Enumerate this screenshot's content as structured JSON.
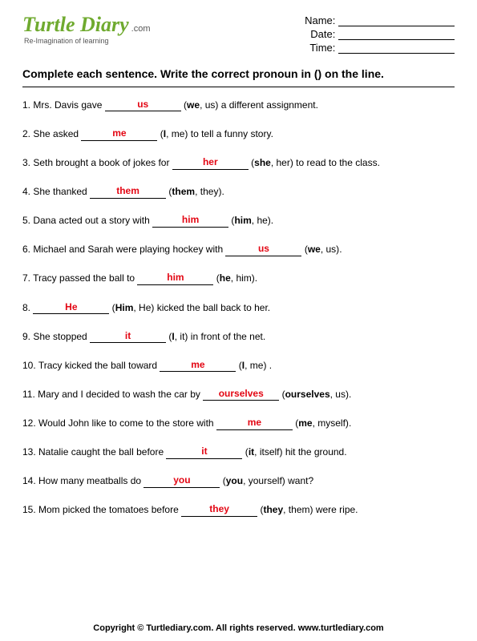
{
  "logo": {
    "main": "Turtle Diary",
    "dotcom": ".com",
    "tagline": "Re-Imagination of learning"
  },
  "form": {
    "name_label": "Name:",
    "date_label": "Date:",
    "time_label": "Time:"
  },
  "instructions": "Complete each sentence. Write the correct pronoun in () on the line.",
  "q": [
    {
      "num": "1.",
      "pre": "Mrs. Davis gave ",
      "ans": "us",
      "opt1": "we",
      "opt2": "us",
      "post": " a different assignment."
    },
    {
      "num": "2.",
      "pre": " She asked ",
      "ans": "me",
      "opt1": "I",
      "opt2": "me",
      "post": " to tell a funny story."
    },
    {
      "num": "3.",
      "pre": "Seth brought a book of jokes for ",
      "ans": "her",
      "opt1": "she",
      "opt2": "her",
      "post": " to read to the class."
    },
    {
      "num": "4.",
      "pre": "She thanked ",
      "ans": "them",
      "opt1": "them",
      "opt2": "they",
      "post": "."
    },
    {
      "num": "5.",
      "pre": "Dana acted out a story with ",
      "ans": "him",
      "opt1": "him",
      "opt2": "he",
      "post": "."
    },
    {
      "num": "6.",
      "pre": "Michael and Sarah were playing hockey with ",
      "ans": "us",
      "opt1": "we",
      "opt2": "us",
      "post": "."
    },
    {
      "num": "7.",
      "pre": "Tracy passed the ball to ",
      "ans": "him",
      "opt1": "he",
      "opt2": "him",
      "post": "."
    },
    {
      "num": "8.",
      "pre": "",
      "ans": "He",
      "opt1": "Him",
      "opt2": "He",
      "post": " kicked the ball back to her."
    },
    {
      "num": "9.",
      "pre": "She stopped ",
      "ans": "it",
      "opt1": "I",
      "opt2": "it",
      "post": " in front of the net."
    },
    {
      "num": "10.",
      "pre": "Tracy kicked the ball toward ",
      "ans": "me",
      "opt1": "I",
      "opt2": "me",
      "post": " ."
    },
    {
      "num": "11.",
      "pre": "Mary and I decided to wash the car by ",
      "ans": "ourselves",
      "opt1": "ourselves",
      "opt2": "us",
      "post": "."
    },
    {
      "num": "12.",
      "pre": "Would John like to come to the store with ",
      "ans": "me",
      "opt1": "me",
      "opt2": "myself",
      "post": "."
    },
    {
      "num": "13.",
      "pre": "Natalie caught the ball before ",
      "ans": "it",
      "opt1": "it",
      "opt2": "itself",
      "post": " hit the ground."
    },
    {
      "num": "14.",
      "pre": "How many meatballs do ",
      "ans": "you",
      "opt1": "you",
      "opt2": "yourself",
      "post": " want?"
    },
    {
      "num": "15.",
      "pre": "Mom picked the tomatoes before  ",
      "ans": "they",
      "opt1": "they",
      "opt2": "them",
      "post": " were ripe."
    }
  ],
  "footer": "Copyright © Turtlediary.com. All rights reserved. www.turtlediary.com"
}
